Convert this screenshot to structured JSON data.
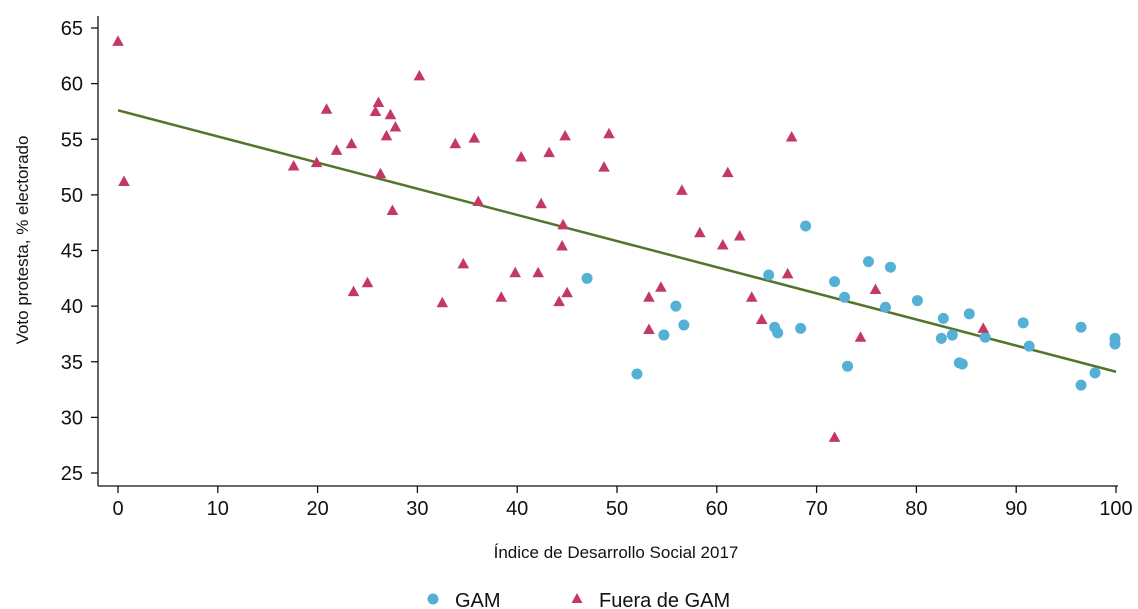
{
  "chart_data": {
    "type": "scatter",
    "title": "",
    "xlabel": "Índice de Desarrollo Social 2017",
    "ylabel": "Voto protesta, % electorado",
    "xlim": [
      0,
      100
    ],
    "ylim": [
      25,
      65
    ],
    "x_ticks": [
      0,
      10,
      20,
      30,
      40,
      50,
      60,
      70,
      80,
      90,
      100
    ],
    "y_ticks": [
      25,
      30,
      35,
      40,
      45,
      50,
      55,
      60,
      65
    ],
    "grid": false,
    "legend_position": "bottom",
    "colors": {
      "gam": "#55b0d5",
      "fuera": "#c23a63",
      "fit": "#52752b"
    },
    "series": [
      {
        "name": "GAM",
        "marker": "circle",
        "points": [
          [
            47.0,
            42.5
          ],
          [
            52.0,
            33.9
          ],
          [
            54.7,
            37.4
          ],
          [
            55.9,
            40.0
          ],
          [
            56.7,
            38.3
          ],
          [
            65.2,
            42.8
          ],
          [
            65.8,
            38.1
          ],
          [
            66.1,
            37.6
          ],
          [
            68.4,
            38.0
          ],
          [
            68.9,
            47.2
          ],
          [
            71.8,
            42.2
          ],
          [
            72.8,
            40.8
          ],
          [
            73.1,
            34.6
          ],
          [
            75.2,
            44.0
          ],
          [
            76.9,
            39.9
          ],
          [
            77.4,
            43.5
          ],
          [
            80.1,
            40.5
          ],
          [
            82.5,
            37.1
          ],
          [
            82.7,
            38.9
          ],
          [
            83.6,
            37.4
          ],
          [
            84.3,
            34.9
          ],
          [
            84.6,
            34.8
          ],
          [
            85.3,
            39.3
          ],
          [
            86.9,
            37.2
          ],
          [
            90.7,
            38.5
          ],
          [
            91.3,
            36.4
          ],
          [
            96.5,
            38.1
          ],
          [
            96.5,
            32.9
          ],
          [
            97.9,
            34.0
          ],
          [
            99.9,
            37.1
          ],
          [
            99.9,
            36.6
          ]
        ]
      },
      {
        "name": "Fuera de GAM",
        "marker": "triangle",
        "points": [
          [
            0.0,
            63.8
          ],
          [
            0.6,
            51.2
          ],
          [
            17.6,
            52.6
          ],
          [
            19.9,
            52.9
          ],
          [
            20.9,
            57.7
          ],
          [
            21.9,
            54.0
          ],
          [
            23.4,
            54.6
          ],
          [
            23.6,
            41.3
          ],
          [
            25.0,
            42.1
          ],
          [
            25.8,
            57.5
          ],
          [
            26.1,
            58.3
          ],
          [
            26.3,
            51.9
          ],
          [
            26.9,
            55.3
          ],
          [
            27.3,
            57.2
          ],
          [
            27.5,
            48.6
          ],
          [
            27.8,
            56.1
          ],
          [
            30.2,
            60.7
          ],
          [
            32.5,
            40.3
          ],
          [
            33.8,
            54.6
          ],
          [
            34.6,
            43.8
          ],
          [
            35.7,
            55.1
          ],
          [
            36.1,
            49.4
          ],
          [
            38.4,
            40.8
          ],
          [
            39.8,
            43.0
          ],
          [
            40.4,
            53.4
          ],
          [
            42.1,
            43.0
          ],
          [
            42.4,
            49.2
          ],
          [
            43.2,
            53.8
          ],
          [
            44.2,
            40.4
          ],
          [
            44.5,
            45.4
          ],
          [
            44.6,
            47.3
          ],
          [
            44.8,
            55.3
          ],
          [
            45.0,
            41.2
          ],
          [
            48.7,
            52.5
          ],
          [
            49.2,
            55.5
          ],
          [
            53.2,
            40.8
          ],
          [
            53.2,
            37.9
          ],
          [
            54.4,
            41.7
          ],
          [
            56.5,
            50.4
          ],
          [
            58.3,
            46.6
          ],
          [
            60.6,
            45.5
          ],
          [
            61.1,
            52.0
          ],
          [
            62.3,
            46.3
          ],
          [
            63.5,
            40.8
          ],
          [
            64.5,
            38.8
          ],
          [
            67.1,
            42.9
          ],
          [
            67.5,
            55.2
          ],
          [
            71.8,
            28.2
          ],
          [
            74.4,
            37.2
          ],
          [
            75.9,
            41.5
          ],
          [
            86.7,
            38.0
          ]
        ]
      }
    ],
    "fit_line": {
      "x": [
        0,
        100
      ],
      "y": [
        57.6,
        34.1
      ]
    }
  }
}
